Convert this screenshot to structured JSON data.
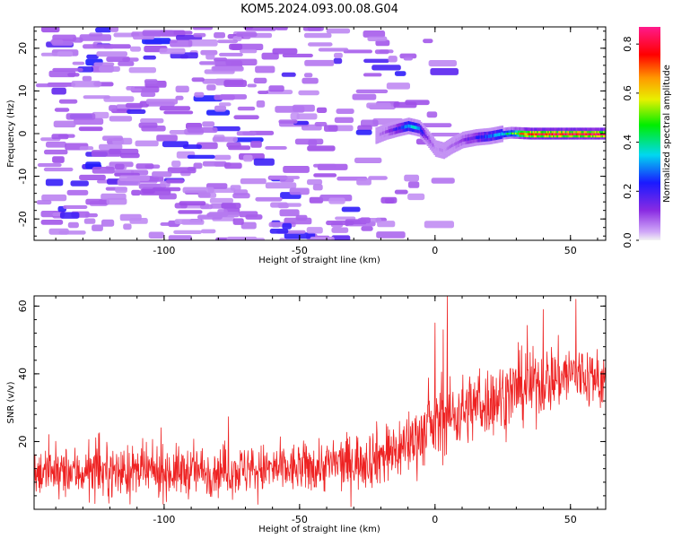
{
  "figure": {
    "title": "KOM5.2024.093.00.08.G04"
  },
  "chart_data": [
    {
      "type": "heatmap",
      "title": "KOM5.2024.093.00.08.G04",
      "xlabel": "Height of straight line (km)",
      "ylabel": "Frequency (Hz)",
      "xlim": [
        -148,
        63
      ],
      "ylim": [
        -25,
        25
      ],
      "x_ticks": [
        -100,
        -50,
        0,
        50
      ],
      "y_ticks": [
        -20,
        -10,
        0,
        10,
        20
      ],
      "colorbar": {
        "label": "Normalized spectral amplitude",
        "range": [
          0.0,
          0.87
        ],
        "ticks": [
          0.0,
          0.2,
          0.4,
          0.6,
          0.8
        ],
        "colormap": "rainbow (violet-blue-cyan-green-yellow-orange-red-magenta)"
      },
      "ridge": {
        "x": [
          -22,
          -18,
          -14,
          -10,
          -6,
          -3,
          0,
          3,
          6,
          10,
          15,
          20,
          25,
          28,
          35,
          45,
          55,
          63
        ],
        "y": [
          -0.5,
          0.5,
          1.2,
          1.8,
          1.2,
          -1.0,
          -3.5,
          -4.0,
          -2.8,
          -1.5,
          -0.9,
          -0.6,
          0.0,
          0.2,
          0.0,
          0.0,
          0.0,
          0.0
        ],
        "amplitude": [
          0.05,
          0.1,
          0.2,
          0.35,
          0.3,
          0.12,
          0.06,
          0.06,
          0.08,
          0.12,
          0.2,
          0.28,
          0.35,
          0.45,
          0.85,
          0.85,
          0.85,
          0.85
        ]
      },
      "grid": false
    },
    {
      "type": "line",
      "xlabel": "Height of straight line (km)",
      "ylabel": "SNR (v/v)",
      "xlim": [
        -148,
        63
      ],
      "ylim": [
        0,
        63
      ],
      "x_ticks": [
        -100,
        -50,
        0,
        50
      ],
      "y_ticks": [
        20,
        40,
        60
      ],
      "series": [
        {
          "color": "#ee2222",
          "trend_x": [
            -148,
            -100,
            -50,
            -30,
            -15,
            0,
            10,
            20,
            30,
            40,
            50,
            63
          ],
          "trend_y": [
            11,
            11,
            12,
            14,
            17,
            25,
            29,
            32,
            35,
            38,
            40,
            38
          ],
          "noise_amplitude": [
            7,
            7,
            7,
            8,
            9,
            10,
            10,
            10,
            10,
            10,
            9,
            9
          ],
          "spikes": [
            {
              "x": 4.5,
              "y": 63
            },
            {
              "x": 3,
              "y": 53
            },
            {
              "x": 40,
              "y": 59
            },
            {
              "x": 52,
              "y": 62
            },
            {
              "x": 0,
              "y": 55
            }
          ]
        }
      ],
      "grid": false
    }
  ]
}
